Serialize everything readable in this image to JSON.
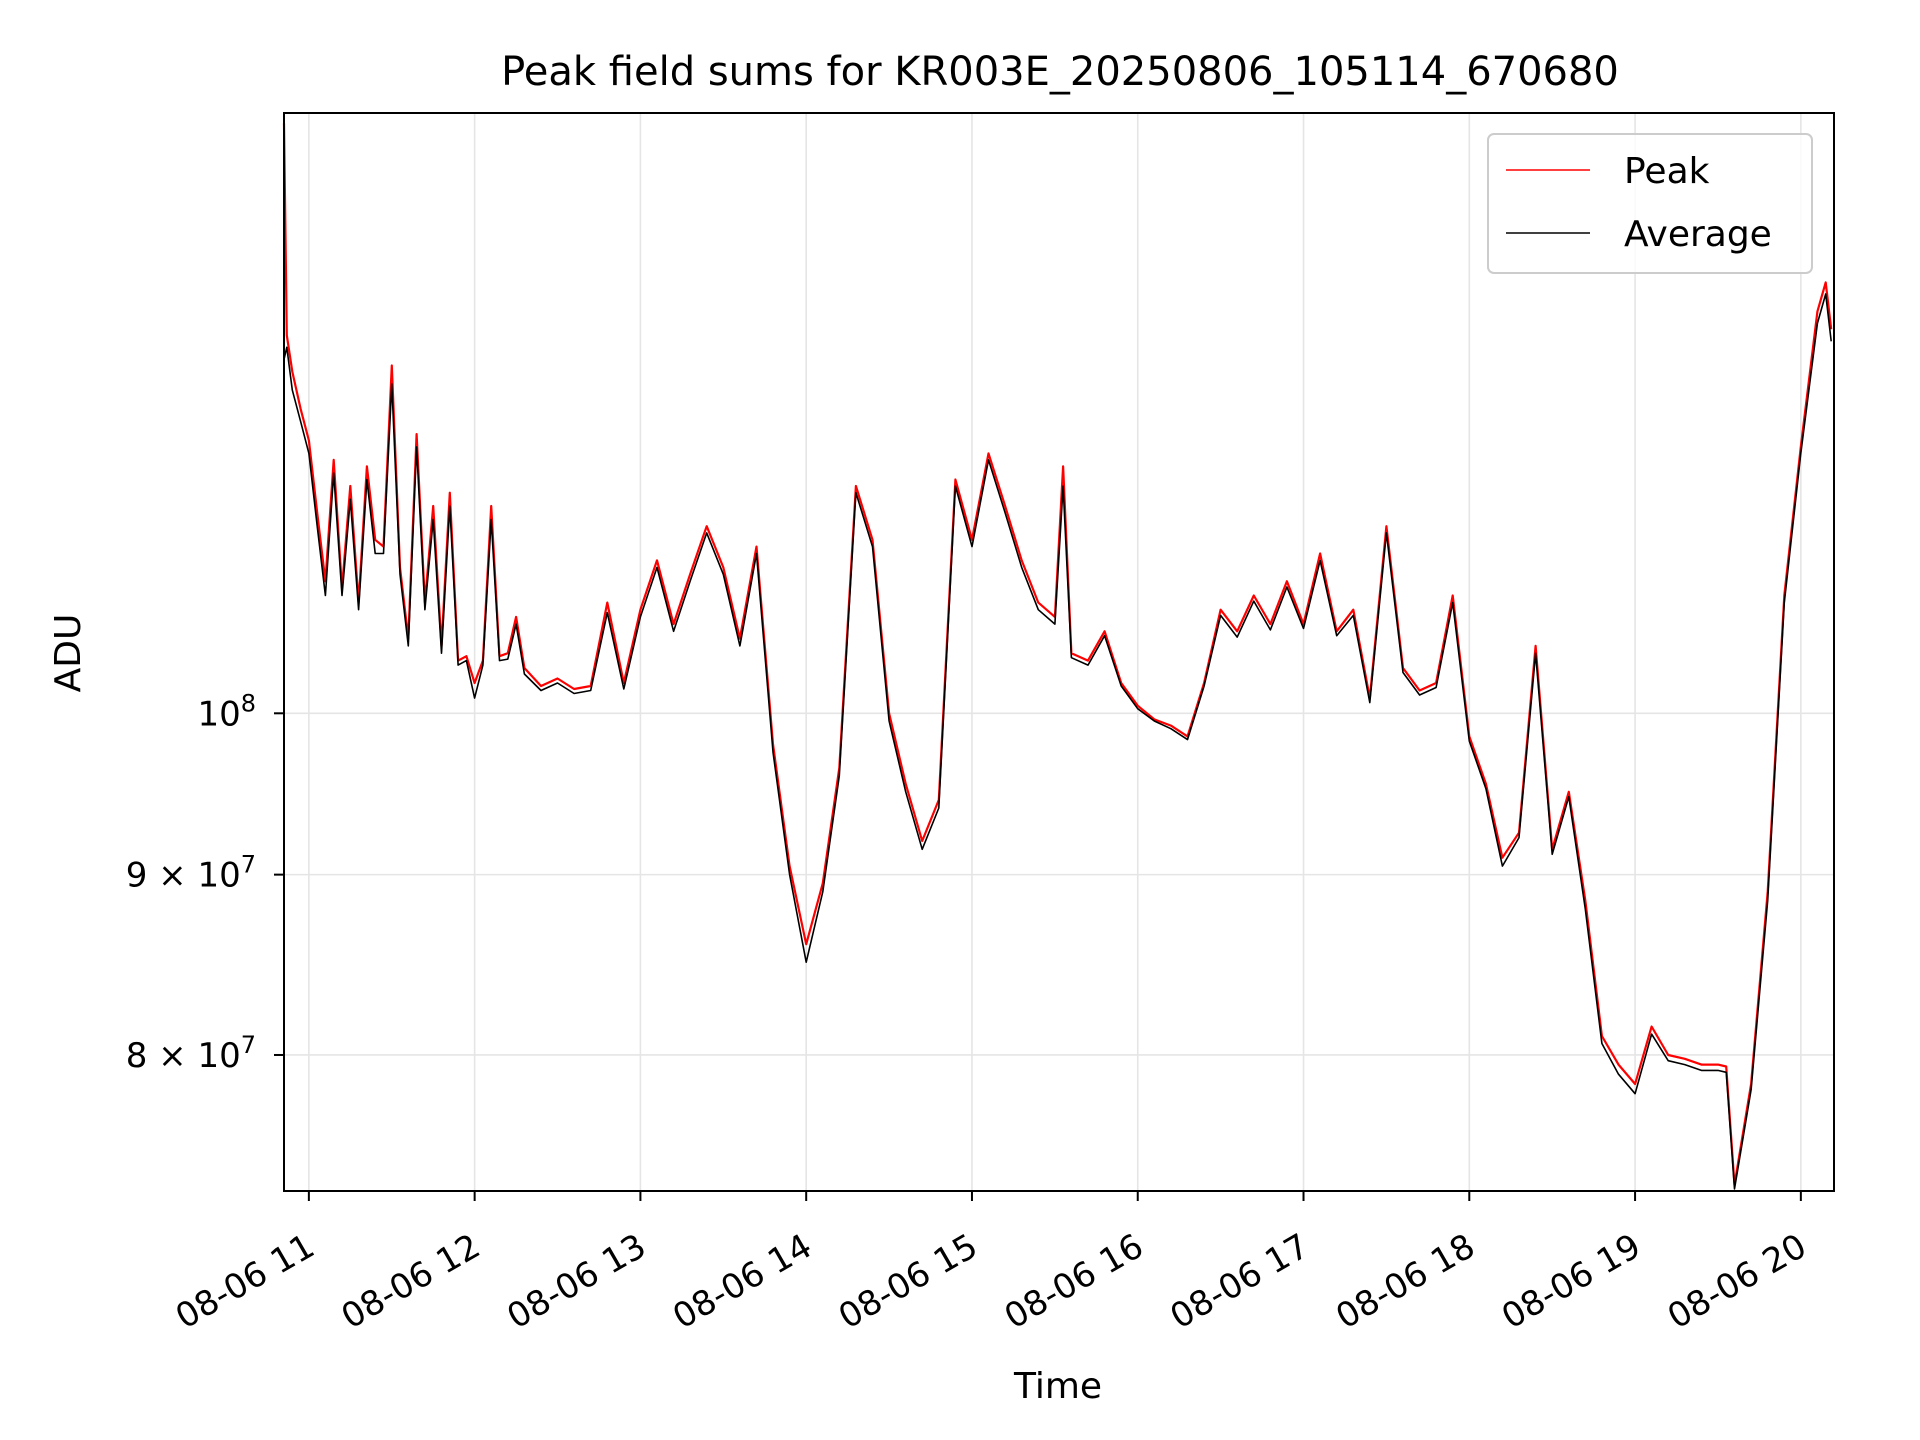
{
  "chart_data": {
    "type": "line",
    "title": "Peak field sums for KR003E_20250806_105114_670680",
    "xlabel": "Time",
    "ylabel": "ADU",
    "y_scale": "log",
    "grid": true,
    "legend_position": "top-right",
    "xlim": [
      "2025-08-06 10:51",
      "2025-08-06 20:12"
    ],
    "ylim": [
      73200000,
      148000000
    ],
    "x_ticks": [
      {
        "value": "2025-08-06 11:00",
        "label": "08-06 11"
      },
      {
        "value": "2025-08-06 12:00",
        "label": "08-06 12"
      },
      {
        "value": "2025-08-06 13:00",
        "label": "08-06 13"
      },
      {
        "value": "2025-08-06 14:00",
        "label": "08-06 14"
      },
      {
        "value": "2025-08-06 15:00",
        "label": "08-06 15"
      },
      {
        "value": "2025-08-06 16:00",
        "label": "08-06 16"
      },
      {
        "value": "2025-08-06 17:00",
        "label": "08-06 17"
      },
      {
        "value": "2025-08-06 18:00",
        "label": "08-06 18"
      },
      {
        "value": "2025-08-06 19:00",
        "label": "08-06 19"
      },
      {
        "value": "2025-08-06 20:00",
        "label": "08-06 20"
      }
    ],
    "y_ticks": [
      {
        "value": 80000000,
        "label_base": "8 × 10",
        "label_exp": "7"
      },
      {
        "value": 90000000,
        "label_base": "9 × 10",
        "label_exp": "7"
      },
      {
        "value": 100000000,
        "label_base": "10",
        "label_exp": "8"
      }
    ],
    "series": [
      {
        "name": "Peak",
        "color": "#ff0000",
        "points": [
          [
            "2025-08-06 10:51",
            147000000
          ],
          [
            "2025-08-06 10:52",
            128000000
          ],
          [
            "2025-08-06 10:54",
            125000000
          ],
          [
            "2025-08-06 10:57",
            122000000
          ],
          [
            "2025-08-06 11:00",
            119500000
          ],
          [
            "2025-08-06 11:03",
            114000000
          ],
          [
            "2025-08-06 11:06",
            109000000
          ],
          [
            "2025-08-06 11:09",
            118000000
          ],
          [
            "2025-08-06 11:12",
            108500000
          ],
          [
            "2025-08-06 11:15",
            116000000
          ],
          [
            "2025-08-06 11:18",
            107500000
          ],
          [
            "2025-08-06 11:21",
            117500000
          ],
          [
            "2025-08-06 11:24",
            112000000
          ],
          [
            "2025-08-06 11:27",
            111500000
          ],
          [
            "2025-08-06 11:30",
            125500000
          ],
          [
            "2025-08-06 11:33",
            110000000
          ],
          [
            "2025-08-06 11:36",
            105000000
          ],
          [
            "2025-08-06 11:39",
            120000000
          ],
          [
            "2025-08-06 11:42",
            107500000
          ],
          [
            "2025-08-06 11:45",
            114500000
          ],
          [
            "2025-08-06 11:48",
            104500000
          ],
          [
            "2025-08-06 11:51",
            115500000
          ],
          [
            "2025-08-06 11:54",
            103500000
          ],
          [
            "2025-08-06 11:57",
            103800000
          ],
          [
            "2025-08-06 12:00",
            102000000
          ],
          [
            "2025-08-06 12:03",
            103500000
          ],
          [
            "2025-08-06 12:06",
            114500000
          ],
          [
            "2025-08-06 12:09",
            103800000
          ],
          [
            "2025-08-06 12:12",
            104000000
          ],
          [
            "2025-08-06 12:15",
            106500000
          ],
          [
            "2025-08-06 12:18",
            103000000
          ],
          [
            "2025-08-06 12:24",
            101800000
          ],
          [
            "2025-08-06 12:30",
            102300000
          ],
          [
            "2025-08-06 12:36",
            101600000
          ],
          [
            "2025-08-06 12:42",
            101800000
          ],
          [
            "2025-08-06 12:48",
            107500000
          ],
          [
            "2025-08-06 12:54",
            102000000
          ],
          [
            "2025-08-06 13:00",
            107000000
          ],
          [
            "2025-08-06 13:06",
            110500000
          ],
          [
            "2025-08-06 13:12",
            106000000
          ],
          [
            "2025-08-06 13:18",
            109500000
          ],
          [
            "2025-08-06 13:24",
            113000000
          ],
          [
            "2025-08-06 13:30",
            110000000
          ],
          [
            "2025-08-06 13:36",
            105000000
          ],
          [
            "2025-08-06 13:42",
            111500000
          ],
          [
            "2025-08-06 13:48",
            98000000
          ],
          [
            "2025-08-06 13:54",
            90500000
          ],
          [
            "2025-08-06 14:00",
            86000000
          ],
          [
            "2025-08-06 14:06",
            89500000
          ],
          [
            "2025-08-06 14:12",
            96500000
          ],
          [
            "2025-08-06 14:18",
            116000000
          ],
          [
            "2025-08-06 14:24",
            112000000
          ],
          [
            "2025-08-06 14:30",
            100000000
          ],
          [
            "2025-08-06 14:36",
            95500000
          ],
          [
            "2025-08-06 14:42",
            92000000
          ],
          [
            "2025-08-06 14:48",
            94500000
          ],
          [
            "2025-08-06 14:54",
            116500000
          ],
          [
            "2025-08-06 15:00",
            112000000
          ],
          [
            "2025-08-06 15:06",
            118500000
          ],
          [
            "2025-08-06 15:12",
            114500000
          ],
          [
            "2025-08-06 15:18",
            110500000
          ],
          [
            "2025-08-06 15:24",
            107500000
          ],
          [
            "2025-08-06 15:30",
            106500000
          ],
          [
            "2025-08-06 15:33",
            117500000
          ],
          [
            "2025-08-06 15:36",
            104000000
          ],
          [
            "2025-08-06 15:42",
            103500000
          ],
          [
            "2025-08-06 15:48",
            105500000
          ],
          [
            "2025-08-06 15:54",
            102000000
          ],
          [
            "2025-08-06 16:00",
            100500000
          ],
          [
            "2025-08-06 16:06",
            99600000
          ],
          [
            "2025-08-06 16:12",
            99200000
          ],
          [
            "2025-08-06 16:18",
            98500000
          ],
          [
            "2025-08-06 16:24",
            102000000
          ],
          [
            "2025-08-06 16:30",
            107000000
          ],
          [
            "2025-08-06 16:36",
            105500000
          ],
          [
            "2025-08-06 16:42",
            108000000
          ],
          [
            "2025-08-06 16:48",
            106000000
          ],
          [
            "2025-08-06 16:54",
            109000000
          ],
          [
            "2025-08-06 17:00",
            106000000
          ],
          [
            "2025-08-06 17:06",
            111000000
          ],
          [
            "2025-08-06 17:12",
            105500000
          ],
          [
            "2025-08-06 17:18",
            107000000
          ],
          [
            "2025-08-06 17:24",
            101000000
          ],
          [
            "2025-08-06 17:30",
            113000000
          ],
          [
            "2025-08-06 17:36",
            103000000
          ],
          [
            "2025-08-06 17:42",
            101500000
          ],
          [
            "2025-08-06 17:48",
            102000000
          ],
          [
            "2025-08-06 17:54",
            108000000
          ],
          [
            "2025-08-06 18:00",
            98500000
          ],
          [
            "2025-08-06 18:06",
            95500000
          ],
          [
            "2025-08-06 18:12",
            91000000
          ],
          [
            "2025-08-06 18:18",
            92500000
          ],
          [
            "2025-08-06 18:24",
            104500000
          ],
          [
            "2025-08-06 18:30",
            91500000
          ],
          [
            "2025-08-06 18:36",
            95000000
          ],
          [
            "2025-08-06 18:42",
            88500000
          ],
          [
            "2025-08-06 18:48",
            81000000
          ],
          [
            "2025-08-06 18:54",
            79500000
          ],
          [
            "2025-08-06 19:00",
            78500000
          ],
          [
            "2025-08-06 19:06",
            81500000
          ],
          [
            "2025-08-06 19:12",
            80000000
          ],
          [
            "2025-08-06 19:18",
            79800000
          ],
          [
            "2025-08-06 19:24",
            79500000
          ],
          [
            "2025-08-06 19:30",
            79500000
          ],
          [
            "2025-08-06 19:33",
            79400000
          ],
          [
            "2025-08-06 19:36",
            73500000
          ],
          [
            "2025-08-06 19:42",
            78500000
          ],
          [
            "2025-08-06 19:48",
            89000000
          ],
          [
            "2025-08-06 19:54",
            108000000
          ],
          [
            "2025-08-06 20:00",
            119000000
          ],
          [
            "2025-08-06 20:06",
            130000000
          ],
          [
            "2025-08-06 20:09",
            132500000
          ],
          [
            "2025-08-06 20:11",
            128500000
          ]
        ]
      },
      {
        "name": "Average",
        "color": "#000000",
        "points": [
          [
            "2025-08-06 10:51",
            126000000
          ],
          [
            "2025-08-06 10:52",
            127000000
          ],
          [
            "2025-08-06 10:54",
            123500000
          ],
          [
            "2025-08-06 10:57",
            121000000
          ],
          [
            "2025-08-06 11:00",
            118500000
          ],
          [
            "2025-08-06 11:03",
            113000000
          ],
          [
            "2025-08-06 11:06",
            108000000
          ],
          [
            "2025-08-06 11:09",
            117000000
          ],
          [
            "2025-08-06 11:12",
            108000000
          ],
          [
            "2025-08-06 11:15",
            115000000
          ],
          [
            "2025-08-06 11:18",
            107000000
          ],
          [
            "2025-08-06 11:21",
            116500000
          ],
          [
            "2025-08-06 11:24",
            111000000
          ],
          [
            "2025-08-06 11:27",
            111000000
          ],
          [
            "2025-08-06 11:30",
            124000000
          ],
          [
            "2025-08-06 11:33",
            109500000
          ],
          [
            "2025-08-06 11:36",
            104500000
          ],
          [
            "2025-08-06 11:39",
            119000000
          ],
          [
            "2025-08-06 11:42",
            107000000
          ],
          [
            "2025-08-06 11:45",
            113500000
          ],
          [
            "2025-08-06 11:48",
            104000000
          ],
          [
            "2025-08-06 11:51",
            114500000
          ],
          [
            "2025-08-06 11:54",
            103200000
          ],
          [
            "2025-08-06 11:57",
            103500000
          ],
          [
            "2025-08-06 12:00",
            101000000
          ],
          [
            "2025-08-06 12:03",
            103200000
          ],
          [
            "2025-08-06 12:06",
            113500000
          ],
          [
            "2025-08-06 12:09",
            103500000
          ],
          [
            "2025-08-06 12:12",
            103600000
          ],
          [
            "2025-08-06 12:15",
            106000000
          ],
          [
            "2025-08-06 12:18",
            102600000
          ],
          [
            "2025-08-06 12:24",
            101500000
          ],
          [
            "2025-08-06 12:30",
            102000000
          ],
          [
            "2025-08-06 12:36",
            101300000
          ],
          [
            "2025-08-06 12:42",
            101500000
          ],
          [
            "2025-08-06 12:48",
            106800000
          ],
          [
            "2025-08-06 12:54",
            101600000
          ],
          [
            "2025-08-06 13:00",
            106500000
          ],
          [
            "2025-08-06 13:06",
            110000000
          ],
          [
            "2025-08-06 13:12",
            105500000
          ],
          [
            "2025-08-06 13:18",
            109000000
          ],
          [
            "2025-08-06 13:24",
            112500000
          ],
          [
            "2025-08-06 13:30",
            109500000
          ],
          [
            "2025-08-06 13:36",
            104500000
          ],
          [
            "2025-08-06 13:42",
            111000000
          ],
          [
            "2025-08-06 13:48",
            97500000
          ],
          [
            "2025-08-06 13:54",
            90000000
          ],
          [
            "2025-08-06 14:00",
            85000000
          ],
          [
            "2025-08-06 14:06",
            89000000
          ],
          [
            "2025-08-06 14:12",
            96000000
          ],
          [
            "2025-08-06 14:18",
            115500000
          ],
          [
            "2025-08-06 14:24",
            111500000
          ],
          [
            "2025-08-06 14:30",
            99500000
          ],
          [
            "2025-08-06 14:36",
            95000000
          ],
          [
            "2025-08-06 14:42",
            91500000
          ],
          [
            "2025-08-06 14:48",
            94000000
          ],
          [
            "2025-08-06 14:54",
            116000000
          ],
          [
            "2025-08-06 15:00",
            111500000
          ],
          [
            "2025-08-06 15:06",
            118000000
          ],
          [
            "2025-08-06 15:12",
            114000000
          ],
          [
            "2025-08-06 15:18",
            110000000
          ],
          [
            "2025-08-06 15:24",
            107000000
          ],
          [
            "2025-08-06 15:30",
            106000000
          ],
          [
            "2025-08-06 15:33",
            116000000
          ],
          [
            "2025-08-06 15:36",
            103700000
          ],
          [
            "2025-08-06 15:42",
            103200000
          ],
          [
            "2025-08-06 15:48",
            105200000
          ],
          [
            "2025-08-06 15:54",
            101800000
          ],
          [
            "2025-08-06 16:00",
            100300000
          ],
          [
            "2025-08-06 16:06",
            99500000
          ],
          [
            "2025-08-06 16:12",
            99000000
          ],
          [
            "2025-08-06 16:18",
            98300000
          ],
          [
            "2025-08-06 16:24",
            101800000
          ],
          [
            "2025-08-06 16:30",
            106600000
          ],
          [
            "2025-08-06 16:36",
            105100000
          ],
          [
            "2025-08-06 16:42",
            107600000
          ],
          [
            "2025-08-06 16:48",
            105600000
          ],
          [
            "2025-08-06 16:54",
            108600000
          ],
          [
            "2025-08-06 17:00",
            105700000
          ],
          [
            "2025-08-06 17:06",
            110500000
          ],
          [
            "2025-08-06 17:12",
            105200000
          ],
          [
            "2025-08-06 17:18",
            106600000
          ],
          [
            "2025-08-06 17:24",
            100700000
          ],
          [
            "2025-08-06 17:30",
            112500000
          ],
          [
            "2025-08-06 17:36",
            102700000
          ],
          [
            "2025-08-06 17:42",
            101200000
          ],
          [
            "2025-08-06 17:48",
            101700000
          ],
          [
            "2025-08-06 17:54",
            107500000
          ],
          [
            "2025-08-06 18:00",
            98200000
          ],
          [
            "2025-08-06 18:06",
            95200000
          ],
          [
            "2025-08-06 18:12",
            90500000
          ],
          [
            "2025-08-06 18:18",
            92200000
          ],
          [
            "2025-08-06 18:24",
            104000000
          ],
          [
            "2025-08-06 18:30",
            91200000
          ],
          [
            "2025-08-06 18:36",
            94700000
          ],
          [
            "2025-08-06 18:42",
            88000000
          ],
          [
            "2025-08-06 18:48",
            80600000
          ],
          [
            "2025-08-06 18:54",
            79000000
          ],
          [
            "2025-08-06 19:00",
            78000000
          ],
          [
            "2025-08-06 19:06",
            81100000
          ],
          [
            "2025-08-06 19:12",
            79700000
          ],
          [
            "2025-08-06 19:18",
            79500000
          ],
          [
            "2025-08-06 19:24",
            79200000
          ],
          [
            "2025-08-06 19:30",
            79200000
          ],
          [
            "2025-08-06 19:33",
            79100000
          ],
          [
            "2025-08-06 19:36",
            73300000
          ],
          [
            "2025-08-06 19:42",
            78200000
          ],
          [
            "2025-08-06 19:48",
            88500000
          ],
          [
            "2025-08-06 19:54",
            107500000
          ],
          [
            "2025-08-06 20:00",
            118500000
          ],
          [
            "2025-08-06 20:06",
            129000000
          ],
          [
            "2025-08-06 20:09",
            131500000
          ],
          [
            "2025-08-06 20:11",
            127500000
          ]
        ]
      }
    ],
    "legend": [
      {
        "label": "Peak",
        "color": "#ff0000"
      },
      {
        "label": "Average",
        "color": "#000000"
      }
    ]
  }
}
